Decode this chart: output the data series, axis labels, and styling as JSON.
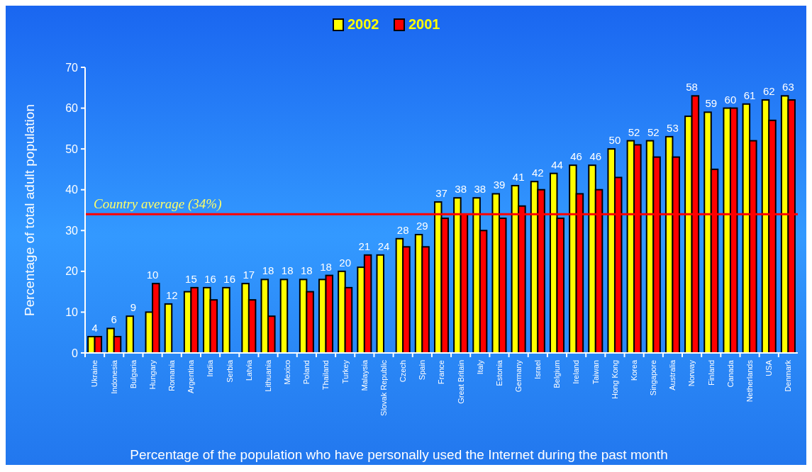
{
  "chart_data": {
    "type": "bar",
    "categories": [
      "Ukraine",
      "Indonesia",
      "Bulgaria",
      "Hungary",
      "Romania",
      "Argentina",
      "India",
      "Serbia",
      "Latvia",
      "Lithuania",
      "Mexico",
      "Poland",
      "Thailand",
      "Turkey",
      "Malaysia",
      "Slovak Republic",
      "Czech",
      "Spain",
      "France",
      "Great Britain",
      "Italy",
      "Estonia",
      "Germany",
      "Israel",
      "Belgium",
      "Ireland",
      "Taiwan",
      "Hong Kong",
      "Korea",
      "Singapore",
      "Australia",
      "Norway",
      "Finland",
      "Canada",
      "Netherlands",
      "USA",
      "Denmark"
    ],
    "series": [
      {
        "name": "2002",
        "color": "#ffff00",
        "values": [
          4,
          6,
          9,
          10,
          12,
          15,
          16,
          16,
          17,
          18,
          18,
          18,
          18,
          20,
          21,
          24,
          28,
          29,
          37,
          38,
          38,
          39,
          41,
          42,
          44,
          46,
          46,
          50,
          52,
          52,
          53,
          58,
          59,
          60,
          61,
          62,
          63
        ],
        "value_labels": [
          "4",
          "6",
          "9",
          "10",
          "12",
          "15",
          "16",
          "16",
          "17",
          "18",
          "18",
          "18",
          "18",
          "20",
          "21",
          "24",
          "28",
          "29",
          "37",
          "38",
          "38",
          "39",
          "41",
          "42",
          "44",
          "46",
          "46",
          "50",
          "52",
          "52",
          "53",
          "58",
          "59",
          "60",
          "61",
          "62",
          "63"
        ]
      },
      {
        "name": "2001",
        "color": "#ff0000",
        "values": [
          4,
          4,
          null,
          17,
          null,
          16,
          13,
          null,
          13,
          9,
          null,
          15,
          19,
          16,
          24,
          null,
          26,
          26,
          33,
          34,
          30,
          33,
          36,
          40,
          33,
          39,
          40,
          43,
          51,
          48,
          48,
          63,
          45,
          60,
          52,
          57,
          62
        ]
      }
    ],
    "ylabel": "Percentage of total adult population",
    "xlabel": "Percentage of the population who have personally used the Internet during the past month",
    "ylim": [
      0,
      70
    ],
    "yticks": [
      0,
      10,
      20,
      30,
      40,
      50,
      60,
      70
    ],
    "ref_lines": [
      {
        "axis": "y",
        "value": 34,
        "label": "Country average (34%)",
        "color": "#ff0000"
      }
    ],
    "legend": "top",
    "grid": false
  }
}
